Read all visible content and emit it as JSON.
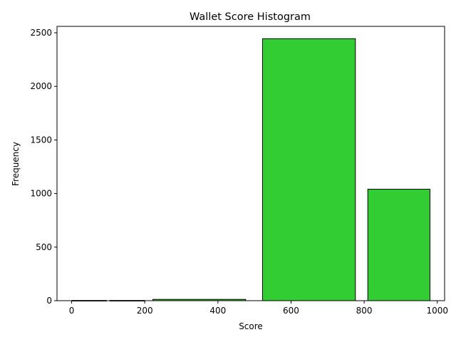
{
  "chart_data": {
    "type": "bar",
    "title": "Wallet Score Histogram",
    "xlabel": "Score",
    "ylabel": "Frequency",
    "xlim": [
      -40,
      1020
    ],
    "ylim": [
      0,
      2560
    ],
    "xticks": [
      0,
      200,
      400,
      600,
      800,
      1000
    ],
    "yticks": [
      0,
      500,
      1000,
      1500,
      2000,
      2500
    ],
    "bar_color": "#32CD32",
    "edge_color": "#000000",
    "bins": [
      {
        "x0": 0,
        "x1": 95,
        "value": 2
      },
      {
        "x0": 105,
        "x1": 200,
        "value": 2
      },
      {
        "x0": 222,
        "x1": 476,
        "value": 12
      },
      {
        "x0": 522,
        "x1": 776,
        "value": 2445
      },
      {
        "x0": 810,
        "x1": 980,
        "value": 1040
      }
    ]
  }
}
